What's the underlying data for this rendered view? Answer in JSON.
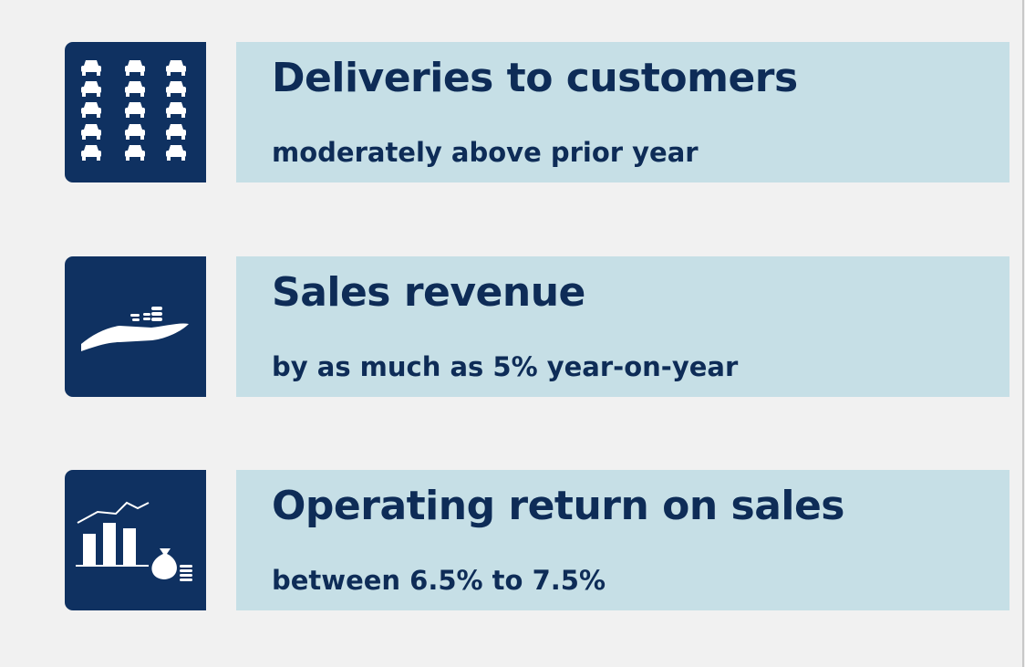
{
  "items": [
    {
      "title": "Deliveries to customers",
      "subtitle": "moderately above prior year"
    },
    {
      "title": "Sales revenue",
      "subtitle": "by as much as 5% year-on-year"
    },
    {
      "title": "Operating return on sales",
      "subtitle": "between 6.5% to 7.5%"
    }
  ]
}
